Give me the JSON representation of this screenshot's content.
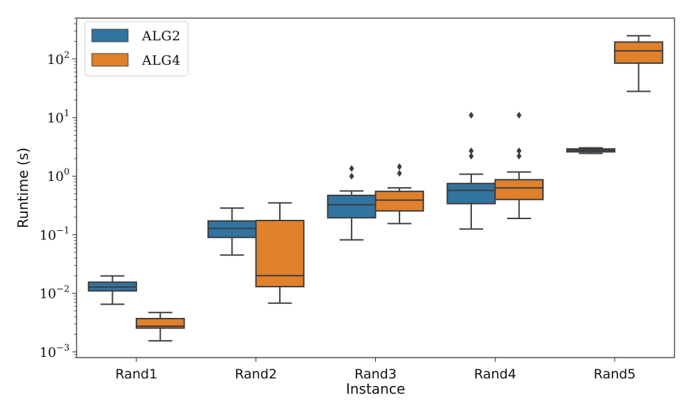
{
  "chart_data": {
    "type": "box",
    "title": "",
    "xlabel": "Instance",
    "ylabel": "Runtime (s)",
    "yscale": "log",
    "ylim": [
      0.0008,
      500
    ],
    "yticks": [
      {
        "value": 0.001,
        "base": "10",
        "exp": "−3"
      },
      {
        "value": 0.01,
        "base": "10",
        "exp": "−2"
      },
      {
        "value": 0.1,
        "base": "10",
        "exp": "−1"
      },
      {
        "value": 1,
        "base": "10",
        "exp": "0"
      },
      {
        "value": 10,
        "base": "10",
        "exp": "1"
      },
      {
        "value": 100,
        "base": "10",
        "exp": "2"
      }
    ],
    "categories": [
      "Rand1",
      "Rand2",
      "Rand3",
      "Rand4",
      "Rand5"
    ],
    "legend_position": "top-left",
    "series": [
      {
        "name": "ALG2",
        "color": "#3274a1",
        "boxes": [
          {
            "whislo": 0.0065,
            "q1": 0.011,
            "med": 0.0128,
            "q3": 0.0155,
            "whishi": 0.0198,
            "fliers": []
          },
          {
            "whislo": 0.045,
            "q1": 0.09,
            "med": 0.128,
            "q3": 0.172,
            "whishi": 0.285,
            "fliers": []
          },
          {
            "whislo": 0.082,
            "q1": 0.195,
            "med": 0.325,
            "q3": 0.47,
            "whishi": 0.56,
            "fliers": [
              1.0,
              1.35
            ]
          },
          {
            "whislo": 0.125,
            "q1": 0.34,
            "med": 0.57,
            "q3": 0.75,
            "whishi": 1.08,
            "fliers": [
              2.2,
              2.7,
              11.0
            ]
          },
          {
            "whislo": 2.45,
            "q1": 2.6,
            "med": 2.75,
            "q3": 2.92,
            "whishi": 3.05,
            "fliers": []
          }
        ]
      },
      {
        "name": "ALG4",
        "color": "#e1812c",
        "boxes": [
          {
            "whislo": 0.00155,
            "q1": 0.00255,
            "med": 0.00275,
            "q3": 0.0037,
            "whishi": 0.0047,
            "fliers": []
          },
          {
            "whislo": 0.0068,
            "q1": 0.013,
            "med": 0.02,
            "q3": 0.175,
            "whishi": 0.35,
            "fliers": []
          },
          {
            "whislo": 0.155,
            "q1": 0.255,
            "med": 0.39,
            "q3": 0.55,
            "whishi": 0.63,
            "fliers": [
              1.12,
              1.45
            ]
          },
          {
            "whislo": 0.19,
            "q1": 0.4,
            "med": 0.63,
            "q3": 0.87,
            "whishi": 1.18,
            "fliers": [
              2.2,
              2.7,
              11.0
            ]
          },
          {
            "whislo": 28.0,
            "q1": 85.0,
            "med": 138.0,
            "q3": 195.0,
            "whishi": 250.0,
            "fliers": []
          }
        ]
      }
    ]
  }
}
